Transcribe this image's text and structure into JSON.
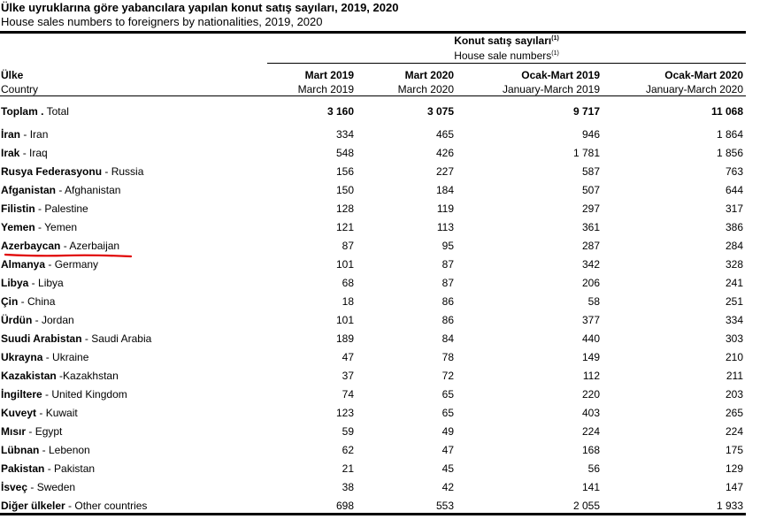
{
  "title": "Ülke uyruklarına göre yabancılara yapılan konut satış sayıları, 2019, 2020",
  "subtitle": "House sales numbers to foreigners by nationalities, 2019, 2020",
  "group_header": {
    "tr": "Konut satış sayıları",
    "en": "House sale numbers",
    "footnote": "(1)"
  },
  "country_header": {
    "tr": "Ülke",
    "en": "Country"
  },
  "columns": [
    {
      "tr": "Mart 2019",
      "en": "March 2019"
    },
    {
      "tr": "Mart 2020",
      "en": "March 2020"
    },
    {
      "tr": "Ocak-Mart 2019",
      "en": "January-March 2019"
    },
    {
      "tr": "Ocak-Mart 2020",
      "en": "January-March 2020"
    }
  ],
  "total": {
    "tr": "Toplam .",
    "en": "Total",
    "values": [
      "3 160",
      "3 075",
      "9 717",
      "11 068"
    ]
  },
  "rows": [
    {
      "tr": "İran",
      "sep": " - ",
      "en": "Iran",
      "values": [
        "334",
        "465",
        "946",
        "1 864"
      ]
    },
    {
      "tr": "Irak",
      "sep": " - ",
      "en": "Iraq",
      "values": [
        "548",
        "426",
        "1 781",
        "1 856"
      ]
    },
    {
      "tr": "Rusya Federasyonu",
      "sep": " - ",
      "en": "Russia",
      "values": [
        "156",
        "227",
        "587",
        "763"
      ]
    },
    {
      "tr": "Afganistan",
      "sep": " - ",
      "en": "Afghanistan",
      "values": [
        "150",
        "184",
        "507",
        "644"
      ]
    },
    {
      "tr": "Filistin",
      "sep": " - ",
      "en": "Palestine",
      "values": [
        "128",
        "119",
        "297",
        "317"
      ]
    },
    {
      "tr": "Yemen",
      "sep": " - ",
      "en": "Yemen",
      "values": [
        "121",
        "113",
        "361",
        "386"
      ]
    },
    {
      "tr": "Azerbaycan",
      "sep": " - ",
      "en": "Azerbaijan",
      "values": [
        "87",
        "95",
        "287",
        "284"
      ],
      "highlight": "#e00000"
    },
    {
      "tr": "Almanya",
      "sep": " - ",
      "en": "Germany",
      "values": [
        "101",
        "87",
        "342",
        "328"
      ]
    },
    {
      "tr": "Libya",
      "sep": " - ",
      "en": "Libya",
      "values": [
        "68",
        "87",
        "206",
        "241"
      ]
    },
    {
      "tr": "Çin",
      "sep": " - ",
      "en": "China",
      "values": [
        "18",
        "86",
        "58",
        "251"
      ]
    },
    {
      "tr": "Ürdün",
      "sep": " - ",
      "en": "Jordan",
      "values": [
        "101",
        "86",
        "377",
        "334"
      ]
    },
    {
      "tr": "Suudi Arabistan",
      "sep": " - ",
      "en": "Saudi Arabia",
      "values": [
        "189",
        "84",
        "440",
        "303"
      ]
    },
    {
      "tr": "Ukrayna",
      "sep": " - ",
      "en": "Ukraine",
      "values": [
        "47",
        "78",
        "149",
        "210"
      ]
    },
    {
      "tr": "Kazakistan",
      "sep": " -",
      "en": "Kazakhstan",
      "values": [
        "37",
        "72",
        "112",
        "211"
      ]
    },
    {
      "tr": "İngiltere",
      "sep": " - ",
      "en": "United Kingdom",
      "values": [
        "74",
        "65",
        "220",
        "203"
      ]
    },
    {
      "tr": "Kuveyt",
      "sep": " - ",
      "en": "Kuwait",
      "values": [
        "123",
        "65",
        "403",
        "265"
      ]
    },
    {
      "tr": "Mısır",
      "sep": " - ",
      "en": "Egypt",
      "values": [
        "59",
        "49",
        "224",
        "224"
      ]
    },
    {
      "tr": "Lübnan",
      "sep": " - ",
      "en": "Lebenon",
      "values": [
        "62",
        "47",
        "168",
        "175"
      ]
    },
    {
      "tr": "Pakistan",
      "sep": " - ",
      "en": "Pakistan",
      "values": [
        "21",
        "45",
        "56",
        "129"
      ]
    },
    {
      "tr": "İsveç",
      "sep": " - ",
      "en": "Sweden",
      "values": [
        "38",
        "42",
        "141",
        "147"
      ]
    },
    {
      "tr": "Diğer ülkeler",
      "sep": " - ",
      "en": "Other countries",
      "values": [
        "698",
        "553",
        "2 055",
        "1 933"
      ]
    }
  ]
}
